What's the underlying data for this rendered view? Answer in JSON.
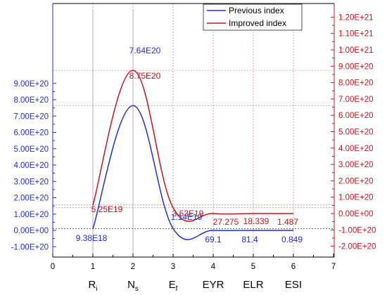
{
  "chart_data": {
    "type": "line",
    "x_ticks": [
      "0",
      "1",
      "2",
      "3",
      "4",
      "5",
      "6",
      "7"
    ],
    "xlim": [
      0,
      7
    ],
    "category_labels": [
      {
        "x": 1,
        "main": "R",
        "sub": "i"
      },
      {
        "x": 2,
        "main": "N",
        "sub": "s"
      },
      {
        "x": 3,
        "main": "E",
        "sub": "f"
      },
      {
        "x": 4,
        "main": "EYR",
        "sub": ""
      },
      {
        "x": 5,
        "main": "ELR",
        "sub": ""
      },
      {
        "x": 6,
        "main": "ESI",
        "sub": ""
      }
    ],
    "y_left": {
      "ylim": [
        -1e+20,
        9e+20
      ],
      "ticks": [
        "-1.00E+20",
        "0.00E+00",
        "1.00E+20",
        "2.00E+20",
        "3.00E+20",
        "4.00E+20",
        "5.00E+20",
        "6.00E+20",
        "7.00E+20",
        "8.00E+20",
        "9.00E+20"
      ],
      "color": "#1f2fd6"
    },
    "y_right": {
      "ylim": [
        -2.4e+20,
        1.25e+21
      ],
      "ticks": [
        "-2.00E+20",
        "-1.00E+20",
        "0.00E+00",
        "1.00E+20",
        "2.00E+20",
        "3.00E+20",
        "4.00E+20",
        "5.00E+20",
        "6.00E+20",
        "7.00E+20",
        "8.00E+20",
        "9.00E+20",
        "1.00E+21",
        "1.10E+21",
        "1.20E+21"
      ],
      "color": "#c8141e"
    },
    "series": [
      {
        "name": "Previous index",
        "axis": "left",
        "color": "#1f2fd6",
        "x": [
          1,
          2,
          3,
          4,
          5,
          6
        ],
        "values": [
          9.38e+18,
          7.64e+20,
          1.14e+19,
          69.1,
          81.4,
          0.849
        ],
        "labels": [
          "9.38E18",
          "7.64E20",
          "1.14E19",
          "69.1",
          "81.4",
          "0.849"
        ]
      },
      {
        "name": "Improved index",
        "axis": "right",
        "color": "#c8141e",
        "x": [
          1,
          2,
          3,
          4,
          5,
          6
        ],
        "values": [
          5.25e+19,
          8.75e+20,
          3.53e+19,
          27.275,
          18.339,
          1.487
        ],
        "labels": [
          "5.25E19",
          "8.75E20",
          "3.53E19",
          "27.275",
          "18.339",
          "1.487"
        ]
      }
    ],
    "legend_position": "top-right",
    "grid": "dotted drop lines at data points"
  }
}
